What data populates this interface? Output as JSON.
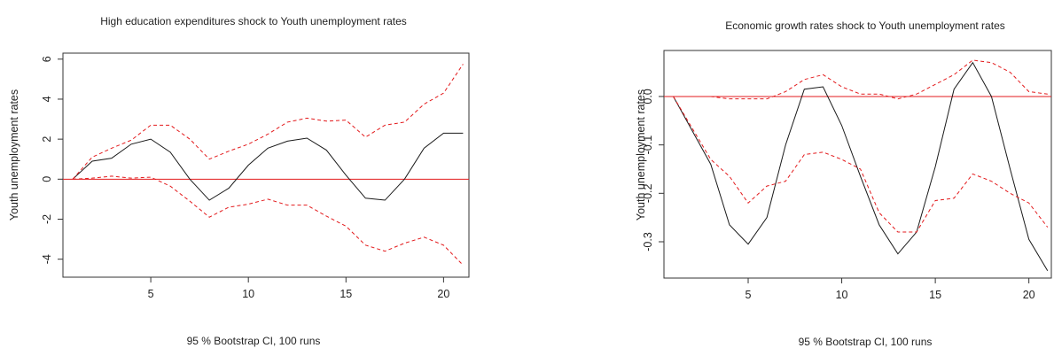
{
  "chart_data": [
    {
      "type": "line",
      "title": "High education expenditures shock to Youth unemployment rates",
      "ylabel": "Youth unemployment rates",
      "footnote": "95 % Bootstrap CI, 100 runs",
      "xlim": [
        0.5,
        21.3
      ],
      "ylim": [
        -4.9,
        6.3
      ],
      "xticks": [
        5,
        10,
        15,
        20
      ],
      "yticks": [
        -4,
        -2,
        0,
        2,
        4,
        6
      ],
      "reference_line": 0,
      "colors": {
        "response": "#1a1a1a",
        "bands": "#e31a1c",
        "zero_line": "#e31a1c"
      },
      "x": [
        1,
        2,
        3,
        4,
        5,
        6,
        7,
        8,
        9,
        10,
        11,
        12,
        13,
        14,
        15,
        16,
        17,
        18,
        19,
        20,
        21
      ],
      "series": [
        {
          "role": "response",
          "style": "solid",
          "values": [
            0,
            0.9,
            1.05,
            1.75,
            2.0,
            1.35,
            0,
            -1.05,
            -0.45,
            0.7,
            1.55,
            1.9,
            2.05,
            1.45,
            0.2,
            -0.95,
            -1.05,
            0,
            1.55,
            2.3,
            2.3
          ]
        },
        {
          "role": "upper",
          "style": "dashed",
          "values": [
            0,
            1.1,
            1.55,
            1.95,
            2.7,
            2.7,
            2.0,
            1.0,
            1.4,
            1.75,
            2.25,
            2.85,
            3.05,
            2.9,
            2.95,
            2.1,
            2.7,
            2.85,
            3.75,
            4.3,
            5.75
          ]
        },
        {
          "role": "lower",
          "style": "dashed",
          "values": [
            0,
            0.05,
            0.15,
            0.05,
            0.1,
            -0.35,
            -1.1,
            -1.9,
            -1.4,
            -1.25,
            -1.0,
            -1.3,
            -1.3,
            -1.85,
            -2.35,
            -3.3,
            -3.6,
            -3.2,
            -2.9,
            -3.3,
            -4.3
          ]
        }
      ]
    },
    {
      "type": "line",
      "title": "Economic growth rates shock to Youth unemployment rates",
      "ylabel": "Youth unemployment rates",
      "footnote": "95 % Bootstrap CI, 100 runs",
      "xlim": [
        0.5,
        21.2
      ],
      "ylim": [
        -0.375,
        0.095
      ],
      "xticks": [
        5,
        10,
        15,
        20
      ],
      "yticks": [
        -0.3,
        -0.2,
        -0.1,
        0.0
      ],
      "ytick_labels": [
        "-0.3",
        "-0.2",
        "-0.1",
        "0.0"
      ],
      "reference_line": 0,
      "colors": {
        "response": "#1a1a1a",
        "bands": "#e31a1c",
        "zero_line": "#e31a1c"
      },
      "x": [
        1,
        2,
        3,
        4,
        5,
        6,
        7,
        8,
        9,
        10,
        11,
        12,
        13,
        14,
        15,
        16,
        17,
        18,
        19,
        20,
        21
      ],
      "series": [
        {
          "role": "response",
          "style": "solid",
          "values": [
            0,
            -0.07,
            -0.14,
            -0.265,
            -0.305,
            -0.25,
            -0.1,
            0.015,
            0.02,
            -0.06,
            -0.165,
            -0.265,
            -0.325,
            -0.28,
            -0.145,
            0.015,
            0.07,
            0,
            -0.15,
            -0.295,
            -0.36
          ]
        },
        {
          "role": "upper",
          "style": "dashed",
          "values": [
            0,
            0,
            0,
            -0.005,
            -0.005,
            -0.005,
            0.01,
            0.035,
            0.045,
            0.02,
            0.005,
            0.005,
            -0.005,
            0.005,
            0.025,
            0.045,
            0.075,
            0.07,
            0.05,
            0.01,
            0.005
          ]
        },
        {
          "role": "lower",
          "style": "dashed",
          "values": [
            0,
            -0.065,
            -0.13,
            -0.165,
            -0.22,
            -0.185,
            -0.175,
            -0.12,
            -0.115,
            -0.13,
            -0.15,
            -0.24,
            -0.28,
            -0.28,
            -0.215,
            -0.21,
            -0.16,
            -0.175,
            -0.2,
            -0.22,
            -0.27
          ]
        }
      ]
    }
  ]
}
